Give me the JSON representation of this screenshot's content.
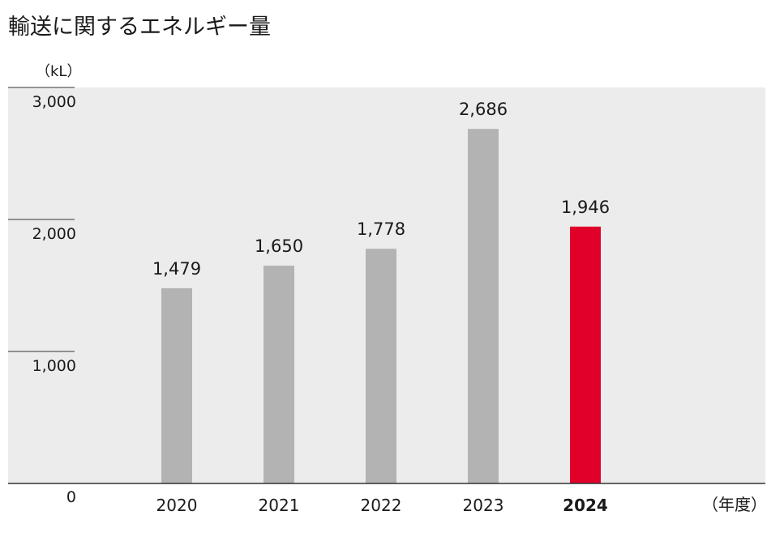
{
  "chart_data": {
    "type": "bar",
    "title": "輸送に関するエネルギー量",
    "y_unit": "（kL）",
    "x_unit": "（年度）",
    "categories": [
      "2020",
      "2021",
      "2022",
      "2023",
      "2024"
    ],
    "values": [
      1479,
      1650,
      1778,
      2686,
      1946
    ],
    "value_labels": [
      "1,479",
      "1,650",
      "1,778",
      "2,686",
      "1,946"
    ],
    "highlight_category": "2024",
    "ylim": [
      0,
      3000
    ],
    "yticks": [
      0,
      1000,
      2000,
      3000
    ],
    "ytick_labels": [
      "0",
      "1,000",
      "2,000",
      "3,000"
    ],
    "grid": false,
    "legend": "none",
    "colors": {
      "bar": "#b3b3b3",
      "highlight": "#e0002a",
      "plot_background": "#ececec",
      "text": "#1a1a1a"
    }
  }
}
